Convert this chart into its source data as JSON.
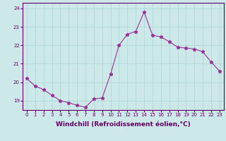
{
  "x": [
    0,
    1,
    2,
    3,
    4,
    5,
    6,
    7,
    8,
    9,
    10,
    11,
    12,
    13,
    14,
    15,
    16,
    17,
    18,
    19,
    20,
    21,
    22,
    23
  ],
  "y": [
    20.2,
    19.8,
    19.6,
    19.3,
    19.0,
    18.9,
    18.75,
    18.65,
    19.1,
    19.15,
    20.45,
    22.0,
    22.6,
    22.75,
    23.8,
    22.55,
    22.45,
    22.2,
    21.9,
    21.85,
    21.8,
    21.65,
    21.1,
    20.6
  ],
  "line_color": "#993399",
  "marker": "*",
  "markersize": 3.5,
  "linewidth": 0.8,
  "xlabel": "Windchill (Refroidissement éolien,°C)",
  "xlabel_fontsize": 6.5,
  "ylim": [
    18.5,
    24.3
  ],
  "yticks": [
    19,
    20,
    21,
    22,
    23,
    24
  ],
  "xticks": [
    0,
    1,
    2,
    3,
    4,
    5,
    6,
    7,
    8,
    9,
    10,
    11,
    12,
    13,
    14,
    15,
    16,
    17,
    18,
    19,
    20,
    21,
    22,
    23
  ],
  "xtick_labels": [
    "0",
    "1",
    "2",
    "3",
    "4",
    "5",
    "6",
    "7",
    "8",
    "9",
    "10",
    "11",
    "12",
    "13",
    "14",
    "15",
    "16",
    "17",
    "18",
    "19",
    "20",
    "21",
    "22",
    "23"
  ],
  "background_color": "#cce8e8",
  "grid_color": "#aad4d4",
  "tick_color": "#660066",
  "tick_fontsize": 5.0,
  "spine_color": "#660066",
  "xlabel_fontweight": "bold"
}
